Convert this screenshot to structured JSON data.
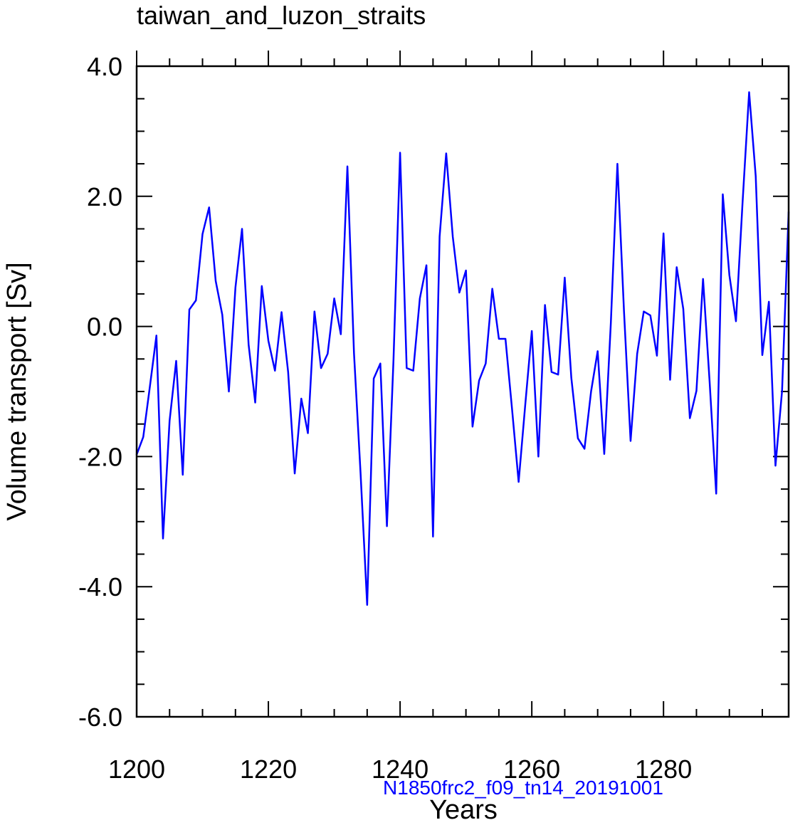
{
  "chart_data": {
    "type": "line",
    "title": "taiwan_and_luzon_straits",
    "subtitle": "N1850frc2_f09_tn14_20191001",
    "xlabel": "Years",
    "ylabel": "Volume transport [Sv]",
    "xlim": [
      1200,
      1299
    ],
    "ylim": [
      -6.0,
      4.0
    ],
    "x_major_ticks": [
      1200,
      1220,
      1240,
      1260,
      1280
    ],
    "x_tick_labels": [
      "1200",
      "1220",
      "1240",
      "1260",
      "1280"
    ],
    "x_minor_step": 5,
    "y_major_ticks": [
      -6.0,
      -4.0,
      -2.0,
      0.0,
      2.0,
      4.0
    ],
    "y_tick_labels": [
      "-6.0",
      "-4.0",
      "-2.0",
      "0.0",
      "2.0",
      "4.0"
    ],
    "y_minor_step": 0.5,
    "grid": false,
    "colors": {
      "line": "#0000ff",
      "subtitle": "#0000ff",
      "axis": "#000000"
    },
    "series": [
      {
        "name": "taiwan_and_luzon_straits",
        "x": [
          1200,
          1201,
          1202,
          1203,
          1204,
          1205,
          1206,
          1207,
          1208,
          1209,
          1210,
          1211,
          1212,
          1213,
          1214,
          1215,
          1216,
          1217,
          1218,
          1219,
          1220,
          1221,
          1222,
          1223,
          1224,
          1225,
          1226,
          1227,
          1228,
          1229,
          1230,
          1231,
          1232,
          1233,
          1234,
          1235,
          1236,
          1237,
          1238,
          1239,
          1240,
          1241,
          1242,
          1243,
          1244,
          1245,
          1246,
          1247,
          1248,
          1249,
          1250,
          1251,
          1252,
          1253,
          1254,
          1255,
          1256,
          1257,
          1258,
          1259,
          1260,
          1261,
          1262,
          1263,
          1264,
          1265,
          1266,
          1267,
          1268,
          1269,
          1270,
          1271,
          1272,
          1273,
          1274,
          1275,
          1276,
          1277,
          1278,
          1279,
          1280,
          1281,
          1282,
          1283,
          1284,
          1285,
          1286,
          1287,
          1288,
          1289,
          1290,
          1291,
          1292,
          1293,
          1294,
          1295,
          1296,
          1297,
          1298,
          1299
        ],
        "y": [
          -1.97,
          -1.7,
          -0.93,
          -0.14,
          -3.26,
          -1.45,
          -0.53,
          -2.28,
          0.26,
          0.4,
          1.42,
          1.83,
          0.7,
          0.18,
          -1.0,
          0.6,
          1.5,
          -0.28,
          -1.17,
          0.62,
          -0.22,
          -0.68,
          0.22,
          -0.7,
          -2.26,
          -1.11,
          -1.64,
          0.23,
          -0.64,
          -0.42,
          0.43,
          -0.12,
          2.46,
          -0.41,
          -2.26,
          -4.28,
          -0.8,
          -0.57,
          -3.07,
          -0.51,
          2.67,
          -0.64,
          -0.68,
          0.43,
          0.94,
          -3.23,
          1.38,
          2.66,
          1.38,
          0.52,
          0.86,
          -1.54,
          -0.83,
          -0.57,
          0.58,
          -0.19,
          -0.19,
          -1.27,
          -2.39,
          -1.21,
          -0.07,
          -2.0,
          0.33,
          -0.7,
          -0.74,
          0.75,
          -0.79,
          -1.72,
          -1.88,
          -1.0,
          -0.38,
          -1.96,
          0.05,
          2.5,
          0.23,
          -1.76,
          -0.42,
          0.23,
          0.17,
          -0.45,
          1.43,
          -0.82,
          0.91,
          0.27,
          -1.41,
          -0.99,
          0.73,
          -0.85,
          -2.57,
          2.03,
          0.79,
          0.08,
          1.9,
          3.6,
          2.31,
          -0.44,
          0.38,
          -2.14,
          -0.99,
          1.76
        ]
      }
    ]
  }
}
